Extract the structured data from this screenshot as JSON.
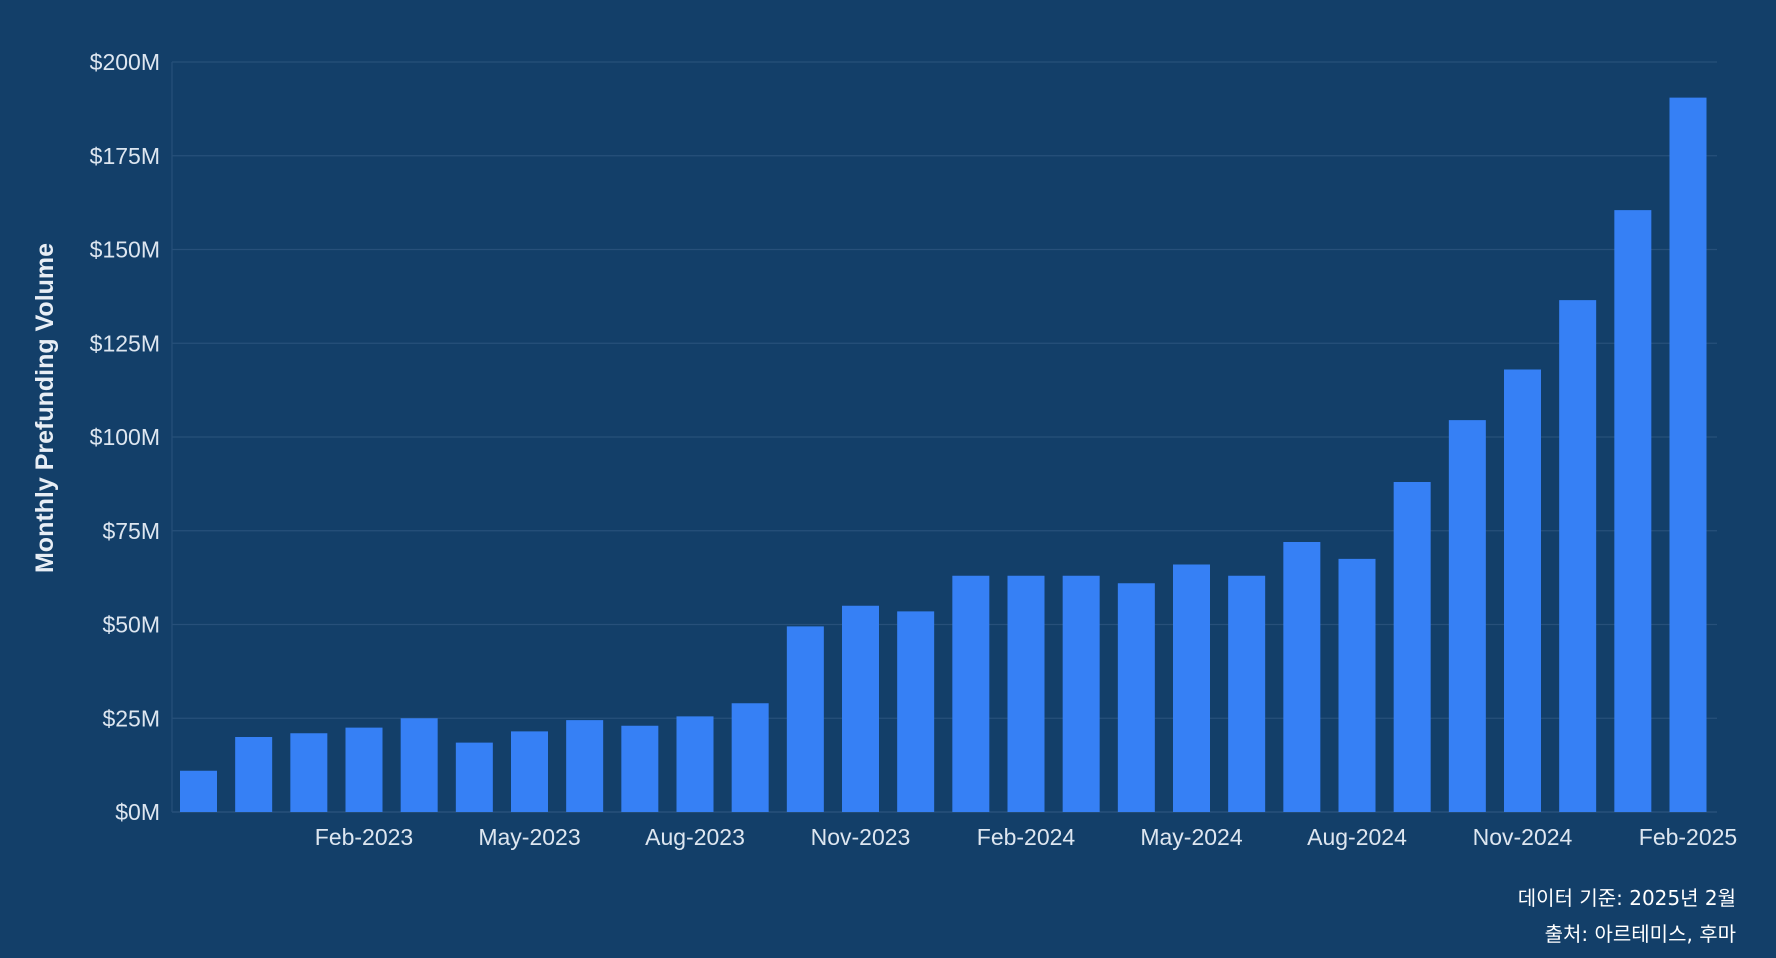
{
  "chart_data": {
    "type": "bar",
    "title": "",
    "xlabel": "",
    "ylabel": "Monthly Prefunding Volume",
    "ylim": [
      0,
      200
    ],
    "y_unit": "$M",
    "y_ticks": [
      0,
      25,
      50,
      75,
      100,
      125,
      150,
      175,
      200
    ],
    "y_tick_labels": [
      "$0M",
      "$25M",
      "$50M",
      "$75M",
      "$100M",
      "$125M",
      "$150M",
      "$175M",
      "$200M"
    ],
    "categories": [
      "Nov-2022",
      "Dec-2022",
      "Jan-2023",
      "Feb-2023",
      "Mar-2023",
      "Apr-2023",
      "May-2023",
      "Jun-2023",
      "Jul-2023",
      "Aug-2023",
      "Sep-2023",
      "Oct-2023",
      "Nov-2023",
      "Dec-2023",
      "Jan-2024",
      "Feb-2024",
      "Mar-2024",
      "Apr-2024",
      "May-2024",
      "Jun-2024",
      "Jul-2024",
      "Aug-2024",
      "Sep-2024",
      "Oct-2024",
      "Nov-2024",
      "Dec-2024",
      "Jan-2025",
      "Feb-2025"
    ],
    "x_tick_labels": [
      "Feb-2023",
      "May-2023",
      "Aug-2023",
      "Nov-2023",
      "Feb-2024",
      "May-2024",
      "Aug-2024",
      "Nov-2024",
      "Feb-2025"
    ],
    "values": [
      11,
      20,
      21,
      22.5,
      25,
      18.5,
      21.5,
      24.5,
      23,
      25.5,
      29,
      49.5,
      55,
      53.5,
      63,
      63,
      63,
      61,
      66,
      63,
      72,
      67.5,
      88,
      104.5,
      118,
      136.5,
      160.5,
      190.5
    ],
    "grid": "horizontal",
    "legend": "none"
  },
  "colors": {
    "background": "#133f69",
    "bar": "#3680f5",
    "grid": "#27507a",
    "tick_text": "#dde6f0",
    "note_text": "#ffffff"
  },
  "notes": {
    "data_date": "데이터 기준: 2025년 2월",
    "source": "출처: 아르테미스, 후마"
  }
}
